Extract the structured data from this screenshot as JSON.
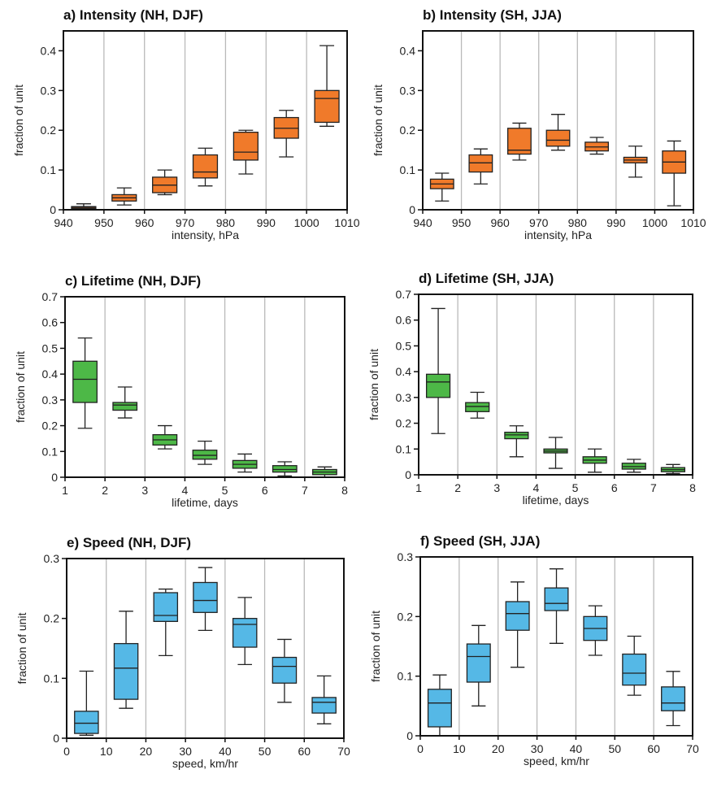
{
  "figure": {
    "ylabel": "fraction of unit"
  },
  "chart_data": [
    {
      "type": "boxplot",
      "title": "a) Intensity (NH, DJF)",
      "xlabel": "intensity, hPa",
      "ylabel": "fraction of unit",
      "color": "#f07a2a",
      "xlim": [
        940,
        1010
      ],
      "ylim": [
        0,
        0.45
      ],
      "xticks": [
        "940",
        "950",
        "960",
        "970",
        "980",
        "990",
        "1000",
        "1010"
      ],
      "yticks": [
        "0",
        "0.1",
        "0.2",
        "0.3",
        "0.4"
      ],
      "yticks_values": [
        0,
        0.1,
        0.2,
        0.3,
        0.4
      ],
      "bins": [
        {
          "x": 945,
          "min": 0.0,
          "q1": 0.003,
          "median": 0.006,
          "q3": 0.008,
          "max": 0.015
        },
        {
          "x": 955,
          "min": 0.012,
          "q1": 0.022,
          "median": 0.03,
          "q3": 0.038,
          "max": 0.055
        },
        {
          "x": 965,
          "min": 0.038,
          "q1": 0.043,
          "median": 0.062,
          "q3": 0.082,
          "max": 0.1
        },
        {
          "x": 975,
          "min": 0.06,
          "q1": 0.08,
          "median": 0.095,
          "q3": 0.138,
          "max": 0.155
        },
        {
          "x": 985,
          "min": 0.09,
          "q1": 0.125,
          "median": 0.145,
          "q3": 0.195,
          "max": 0.2
        },
        {
          "x": 995,
          "min": 0.133,
          "q1": 0.18,
          "median": 0.205,
          "q3": 0.232,
          "max": 0.25
        },
        {
          "x": 1005,
          "min": 0.21,
          "q1": 0.22,
          "median": 0.28,
          "q3": 0.3,
          "max": 0.413
        }
      ]
    },
    {
      "type": "boxplot",
      "title": "b) Intensity (SH, JJA)",
      "xlabel": "intensity, hPa",
      "ylabel": "fraction of unit",
      "color": "#f07a2a",
      "xlim": [
        940,
        1010
      ],
      "ylim": [
        0,
        0.45
      ],
      "xticks": [
        "940",
        "950",
        "960",
        "970",
        "980",
        "990",
        "1000",
        "1010"
      ],
      "yticks": [
        "0",
        "0.1",
        "0.2",
        "0.3",
        "0.4"
      ],
      "yticks_values": [
        0,
        0.1,
        0.2,
        0.3,
        0.4
      ],
      "bins": [
        {
          "x": 945,
          "min": 0.022,
          "q1": 0.053,
          "median": 0.065,
          "q3": 0.077,
          "max": 0.092
        },
        {
          "x": 955,
          "min": 0.065,
          "q1": 0.095,
          "median": 0.118,
          "q3": 0.138,
          "max": 0.153
        },
        {
          "x": 965,
          "min": 0.125,
          "q1": 0.14,
          "median": 0.15,
          "q3": 0.205,
          "max": 0.218
        },
        {
          "x": 975,
          "min": 0.15,
          "q1": 0.16,
          "median": 0.175,
          "q3": 0.2,
          "max": 0.24
        },
        {
          "x": 985,
          "min": 0.14,
          "q1": 0.148,
          "median": 0.158,
          "q3": 0.17,
          "max": 0.182
        },
        {
          "x": 995,
          "min": 0.082,
          "q1": 0.118,
          "median": 0.125,
          "q3": 0.132,
          "max": 0.16
        },
        {
          "x": 1005,
          "min": 0.01,
          "q1": 0.092,
          "median": 0.12,
          "q3": 0.148,
          "max": 0.173
        }
      ]
    },
    {
      "type": "boxplot",
      "title": "c) Lifetime (NH, DJF)",
      "xlabel": "lifetime, days",
      "ylabel": "fraction of unit",
      "color": "#4db847",
      "xlim": [
        1,
        8
      ],
      "ylim": [
        0,
        0.7
      ],
      "xticks": [
        "1",
        "2",
        "3",
        "4",
        "5",
        "6",
        "7",
        "8"
      ],
      "yticks": [
        "0",
        "0.1",
        "0.2",
        "0.3",
        "0.4",
        "0.5",
        "0.6",
        "0.7"
      ],
      "yticks_values": [
        0,
        0.1,
        0.2,
        0.3,
        0.4,
        0.5,
        0.6,
        0.7
      ],
      "bins": [
        {
          "x": 1.5,
          "min": 0.19,
          "q1": 0.29,
          "median": 0.38,
          "q3": 0.45,
          "max": 0.54
        },
        {
          "x": 2.5,
          "min": 0.23,
          "q1": 0.26,
          "median": 0.28,
          "q3": 0.29,
          "max": 0.35
        },
        {
          "x": 3.5,
          "min": 0.11,
          "q1": 0.125,
          "median": 0.145,
          "q3": 0.165,
          "max": 0.2
        },
        {
          "x": 4.5,
          "min": 0.05,
          "q1": 0.07,
          "median": 0.085,
          "q3": 0.105,
          "max": 0.14
        },
        {
          "x": 5.5,
          "min": 0.02,
          "q1": 0.035,
          "median": 0.05,
          "q3": 0.065,
          "max": 0.09
        },
        {
          "x": 6.5,
          "min": 0.005,
          "q1": 0.02,
          "median": 0.03,
          "q3": 0.045,
          "max": 0.06
        },
        {
          "x": 7.5,
          "min": 0.0,
          "q1": 0.01,
          "median": 0.02,
          "q3": 0.03,
          "max": 0.04
        }
      ]
    },
    {
      "type": "boxplot",
      "title": "d) Lifetime (SH, JJA)",
      "xlabel": "lifetime, days",
      "ylabel": "fraction of unit",
      "color": "#4db847",
      "xlim": [
        1,
        8
      ],
      "ylim": [
        0,
        0.7
      ],
      "xticks": [
        "1",
        "2",
        "3",
        "4",
        "5",
        "6",
        "7",
        "8"
      ],
      "yticks": [
        "0",
        "0.1",
        "0.2",
        "0.3",
        "0.4",
        "0.5",
        "0.6",
        "0.7"
      ],
      "yticks_values": [
        0,
        0.1,
        0.2,
        0.3,
        0.4,
        0.5,
        0.6,
        0.7
      ],
      "bins": [
        {
          "x": 1.5,
          "min": 0.16,
          "q1": 0.3,
          "median": 0.36,
          "q3": 0.39,
          "max": 0.645
        },
        {
          "x": 2.5,
          "min": 0.22,
          "q1": 0.245,
          "median": 0.265,
          "q3": 0.28,
          "max": 0.32
        },
        {
          "x": 3.5,
          "min": 0.07,
          "q1": 0.14,
          "median": 0.155,
          "q3": 0.165,
          "max": 0.19
        },
        {
          "x": 4.5,
          "min": 0.025,
          "q1": 0.085,
          "median": 0.092,
          "q3": 0.1,
          "max": 0.145
        },
        {
          "x": 5.5,
          "min": 0.01,
          "q1": 0.045,
          "median": 0.057,
          "q3": 0.07,
          "max": 0.1
        },
        {
          "x": 6.5,
          "min": 0.01,
          "q1": 0.022,
          "median": 0.032,
          "q3": 0.045,
          "max": 0.06
        },
        {
          "x": 7.5,
          "min": 0.005,
          "q1": 0.012,
          "median": 0.02,
          "q3": 0.028,
          "max": 0.04
        }
      ]
    },
    {
      "type": "boxplot",
      "title": "e) Speed (NH, DJF)",
      "xlabel": "speed, km/hr",
      "ylabel": "fraction of unit",
      "color": "#55b8e6",
      "xlim": [
        0,
        70
      ],
      "ylim": [
        0,
        0.3
      ],
      "xticks": [
        "0",
        "10",
        "20",
        "30",
        "40",
        "50",
        "60",
        "70"
      ],
      "yticks": [
        "0",
        "0.1",
        "0.2",
        "0.3"
      ],
      "yticks_values": [
        0,
        0.1,
        0.2,
        0.3
      ],
      "bins": [
        {
          "x": 5,
          "min": 0.005,
          "q1": 0.008,
          "median": 0.025,
          "q3": 0.045,
          "max": 0.112
        },
        {
          "x": 15,
          "min": 0.05,
          "q1": 0.065,
          "median": 0.117,
          "q3": 0.158,
          "max": 0.212
        },
        {
          "x": 25,
          "min": 0.138,
          "q1": 0.195,
          "median": 0.205,
          "q3": 0.243,
          "max": 0.249
        },
        {
          "x": 35,
          "min": 0.18,
          "q1": 0.21,
          "median": 0.23,
          "q3": 0.26,
          "max": 0.285
        },
        {
          "x": 45,
          "min": 0.123,
          "q1": 0.152,
          "median": 0.19,
          "q3": 0.2,
          "max": 0.235
        },
        {
          "x": 55,
          "min": 0.06,
          "q1": 0.092,
          "median": 0.12,
          "q3": 0.135,
          "max": 0.165
        },
        {
          "x": 65,
          "min": 0.024,
          "q1": 0.042,
          "median": 0.06,
          "q3": 0.068,
          "max": 0.104
        }
      ]
    },
    {
      "type": "boxplot",
      "title": "f) Speed (SH, JJA)",
      "xlabel": "speed, km/hr",
      "ylabel": "fraction of unit",
      "color": "#55b8e6",
      "xlim": [
        0,
        70
      ],
      "ylim": [
        0,
        0.3
      ],
      "xticks": [
        "0",
        "10",
        "20",
        "30",
        "40",
        "50",
        "60",
        "70"
      ],
      "yticks": [
        "0",
        "0.1",
        "0.2",
        "0.3"
      ],
      "yticks_values": [
        0,
        0.1,
        0.2,
        0.3
      ],
      "bins": [
        {
          "x": 5,
          "min": 0.0,
          "q1": 0.015,
          "median": 0.055,
          "q3": 0.078,
          "max": 0.102
        },
        {
          "x": 15,
          "min": 0.05,
          "q1": 0.09,
          "median": 0.133,
          "q3": 0.154,
          "max": 0.185
        },
        {
          "x": 25,
          "min": 0.115,
          "q1": 0.177,
          "median": 0.205,
          "q3": 0.225,
          "max": 0.258
        },
        {
          "x": 35,
          "min": 0.155,
          "q1": 0.21,
          "median": 0.222,
          "q3": 0.248,
          "max": 0.28
        },
        {
          "x": 45,
          "min": 0.135,
          "q1": 0.16,
          "median": 0.18,
          "q3": 0.2,
          "max": 0.218
        },
        {
          "x": 55,
          "min": 0.068,
          "q1": 0.085,
          "median": 0.105,
          "q3": 0.137,
          "max": 0.167
        },
        {
          "x": 65,
          "min": 0.017,
          "q1": 0.042,
          "median": 0.055,
          "q3": 0.082,
          "max": 0.108
        }
      ]
    }
  ]
}
